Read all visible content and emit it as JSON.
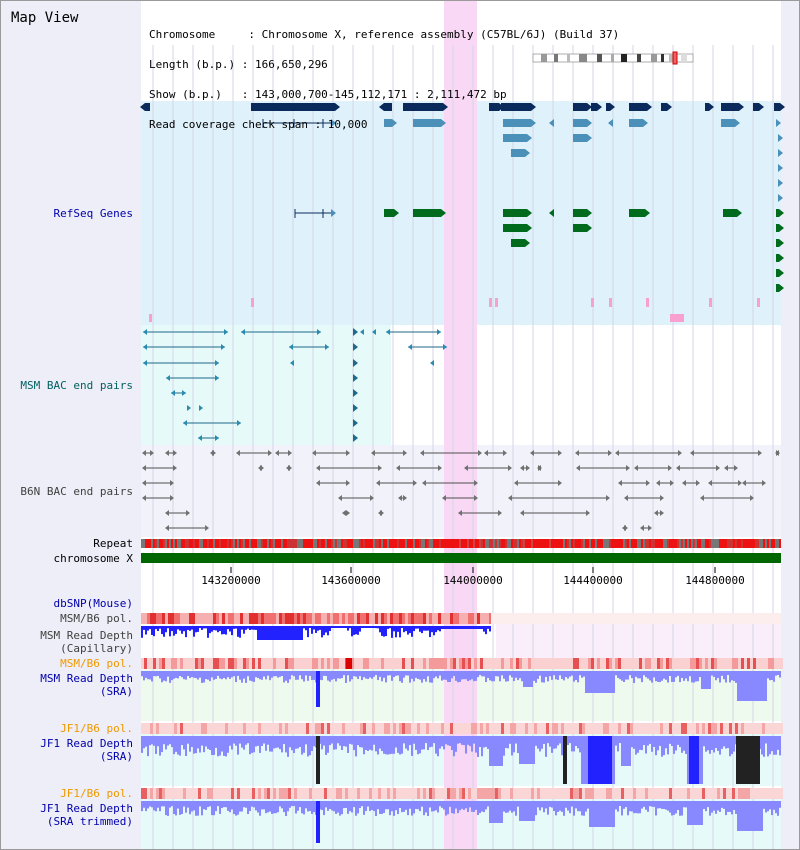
{
  "view_title": "Map View",
  "info_lines": [
    "Chromosome     : Chromosome X, reference assembly (C57BL/6J) (Build 37)",
    "Length (b.p.) : 166,650,296",
    "Show (b.p.)   : 143,000,700-145,112,171 : 2,111,472 bp",
    "Read coverage check span : 10,000"
  ],
  "track_labels": {
    "refseq": "RefSeq Genes",
    "msm_bac": "MSM BAC end pairs",
    "b6n_bac": "B6N BAC end pairs",
    "repeat": "Repeat",
    "chromosome": "chromosome X",
    "dbsnp": "dbSNP(Mouse)",
    "msm_b6_pol_1": "MSM/B6 pol.",
    "msm_depth_cap": "MSM Read Depth\n(Capillary)",
    "msm_b6_pol_2": "MSM/B6 pol.",
    "msm_depth_sra": "MSM Read Depth\n(SRA)",
    "jf1_b6_pol_1": "JF1/B6 pol.",
    "jf1_depth_sra": "JF1 Read Depth\n(SRA)",
    "jf1_b6_pol_2": "JF1/B6 pol.",
    "jf1_depth_trim": "JF1 Read Depth\n(SRA trimmed)"
  },
  "axis_ticks": [
    "143200000",
    "143600000",
    "144000000",
    "144400000",
    "144800000"
  ],
  "colors": {
    "label_blue": "#0000aa",
    "label_teal": "#006060",
    "label_gray": "#404040",
    "label_orange": "#ee9900",
    "refseq_bg": "#dff2fb",
    "msm_bg": "#e6fafa",
    "b6n_bg": "#f2f2fa",
    "highlight": "#f8d8f4",
    "chromosome_green": "#006600",
    "gene_dark": "#0b2a5c",
    "gene_mid": "#4a90b8",
    "gene_green": "#006b1c",
    "depth_blue": "#2222ff",
    "depth_light": "#8888ff"
  }
}
